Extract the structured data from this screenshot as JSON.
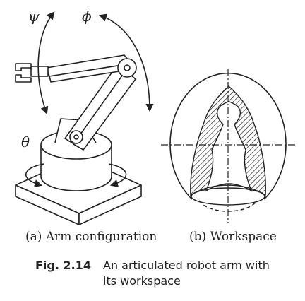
{
  "figure": {
    "labels": {
      "psi": "ψ",
      "phi": "ϕ",
      "theta": "θ"
    },
    "captions": {
      "a": "(a) Arm configuration",
      "b": "(b) Workspace"
    },
    "fig_number": "Fig. 2.14",
    "fig_text_line1": "An articulated robot arm with",
    "fig_text_line2": "its workspace"
  }
}
